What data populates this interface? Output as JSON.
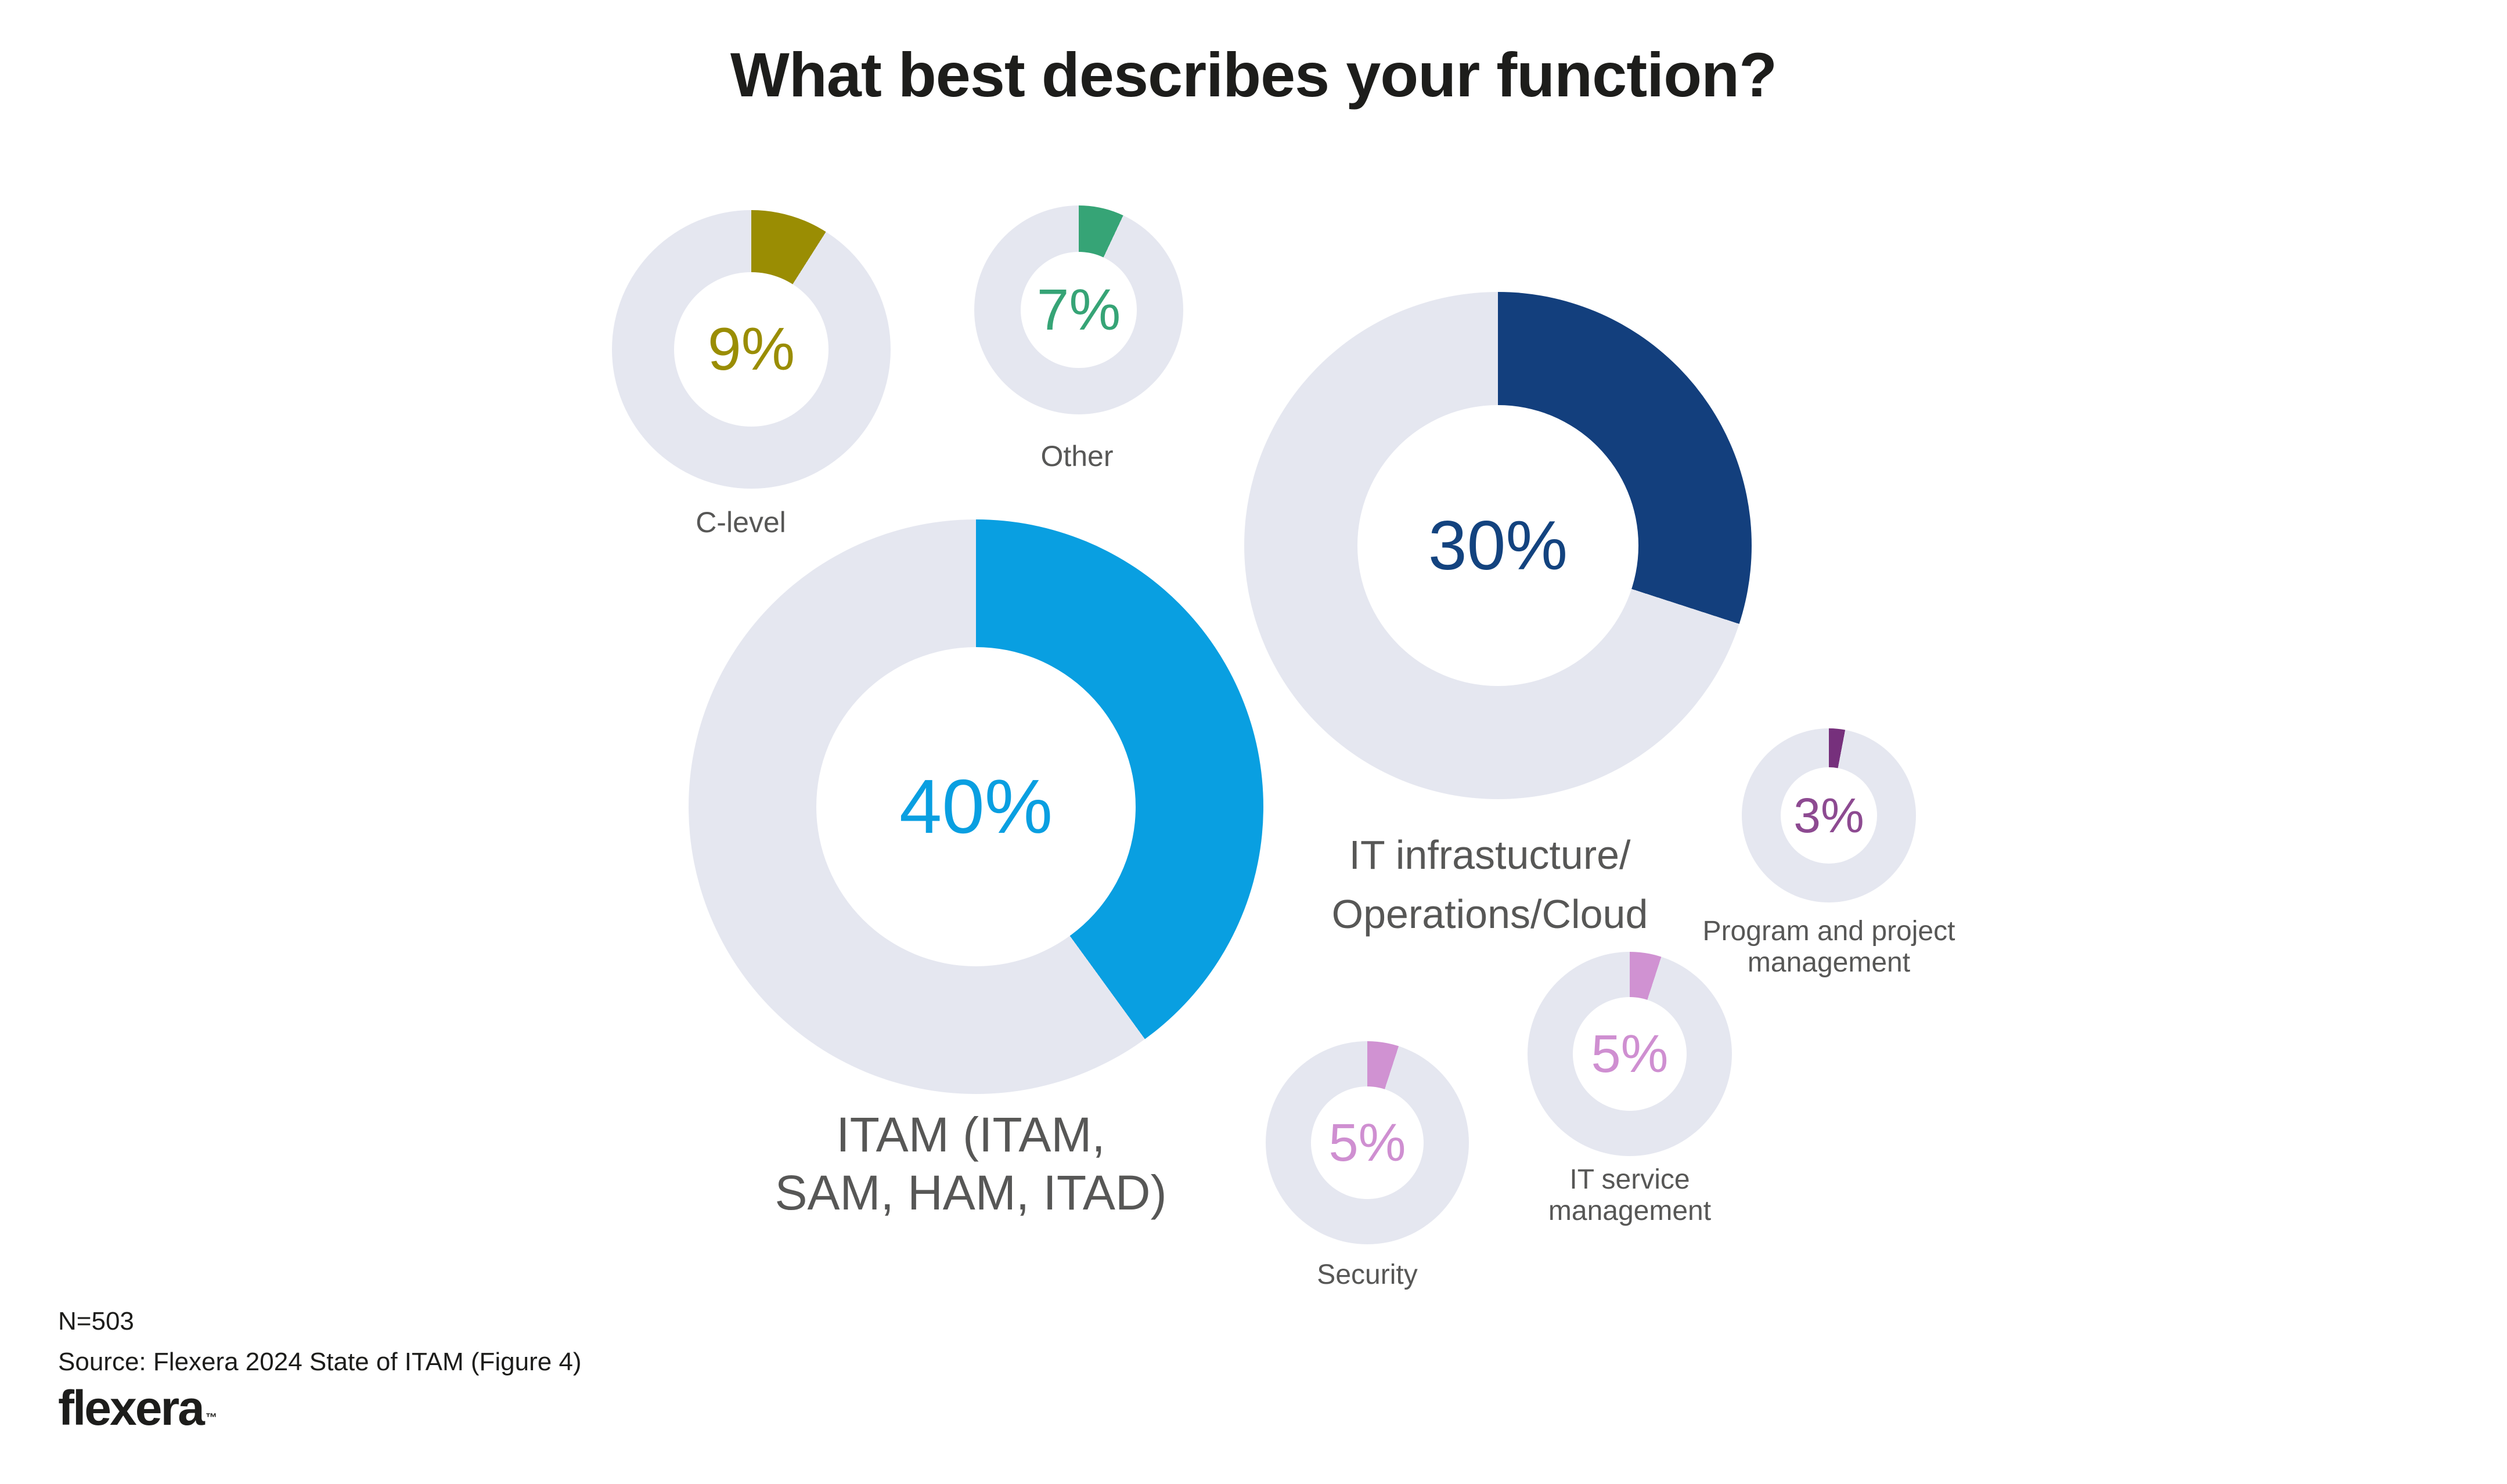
{
  "title": "What best describes your function?",
  "colors": {
    "track": "#e5e7f0",
    "label_gray": "#575756",
    "text_dark": "#1d1d1b"
  },
  "chart_data": {
    "type": "pie",
    "subtype": "multi-donut",
    "title": "What best describes your function?",
    "legend_position": "none",
    "units": "percent of respondents",
    "donuts": [
      {
        "id": "itam",
        "label": "ITAM (ITAM,\nSAM, HAM, ITAD)",
        "value": 40,
        "value_label": "40%",
        "color": "#099fe1",
        "text_color": "#099fe1"
      },
      {
        "id": "it-infrastructure",
        "label": "IT infrastucture/\nOperations/Cloud",
        "value": 30,
        "value_label": "30%",
        "color": "#133f7d",
        "text_color": "#13437f"
      },
      {
        "id": "c-level",
        "label": "C-level",
        "value": 9,
        "value_label": "9%",
        "color": "#9a8d03",
        "text_color": "#9a8d03"
      },
      {
        "id": "other",
        "label": "Other",
        "value": 7,
        "value_label": "7%",
        "color": "#36a476",
        "text_color": "#36a476"
      },
      {
        "id": "itsm",
        "label": "IT service\nmanagement",
        "value": 5,
        "value_label": "5%",
        "color": "#d092d2",
        "text_color": "#cf8fd1"
      },
      {
        "id": "security",
        "label": "Security",
        "value": 5,
        "value_label": "5%",
        "color": "#d092d2",
        "text_color": "#cf8fd1"
      },
      {
        "id": "program-project",
        "label": "Program and project\nmanagement",
        "value": 3,
        "value_label": "3%",
        "color": "#76307c",
        "text_color": "#8d4a91"
      }
    ],
    "sample_size": "N=503",
    "source": "Source: Flexera 2024 State of ITAM (Figure 4)"
  },
  "footer": {
    "n_label": "N=503",
    "source": "Source: Flexera 2024 State of ITAM (Figure 4)",
    "brand": "flexera",
    "trademark": "™"
  }
}
